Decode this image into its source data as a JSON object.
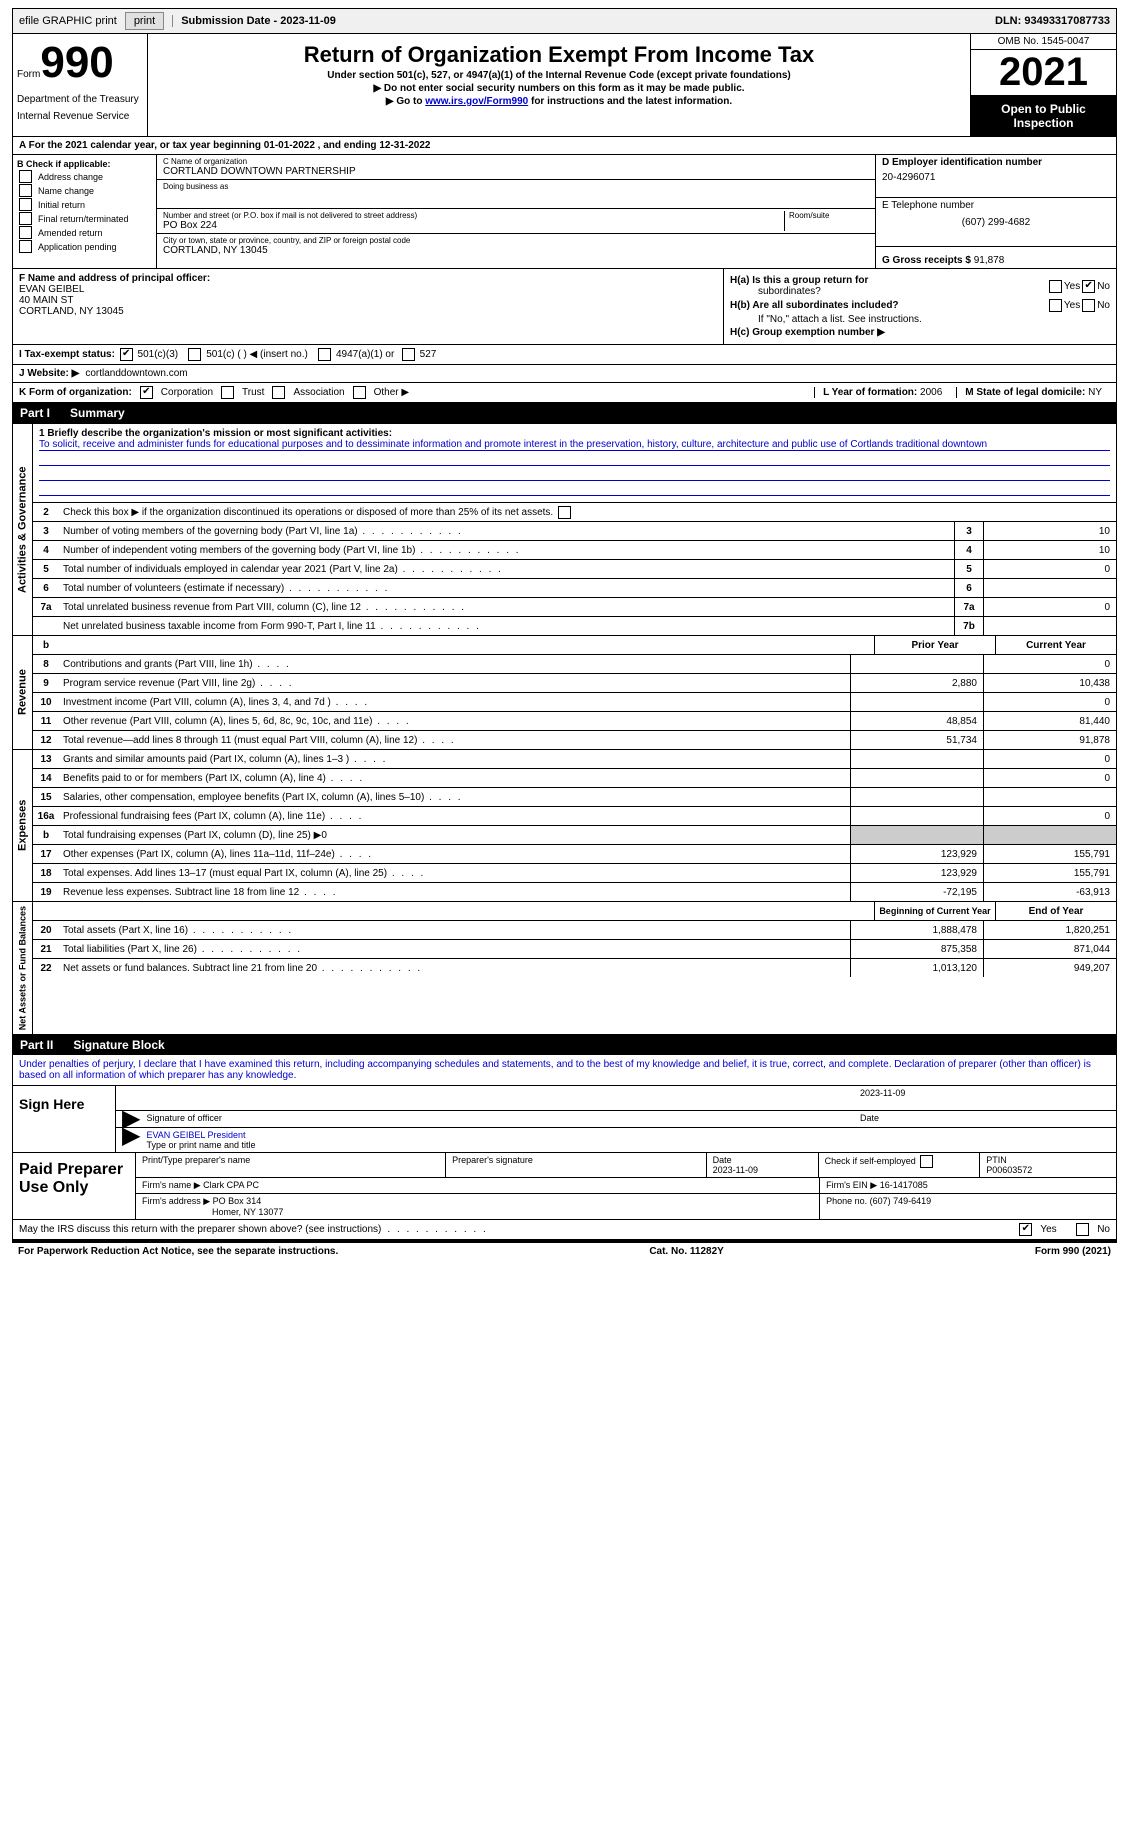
{
  "topbar": {
    "efile": "efile GRAPHIC print",
    "submission": "Submission Date - 2023-11-09",
    "dln": "DLN: 93493317087733"
  },
  "header": {
    "form_small": "Form",
    "form_num": "990",
    "dept": "Department of the Treasury",
    "irs": "Internal Revenue Service",
    "title": "Return of Organization Exempt From Income Tax",
    "sub1": "Under section 501(c), 527, or 4947(a)(1) of the Internal Revenue Code (except private foundations)",
    "sub2": "▶ Do not enter social security numbers on this form as it may be made public.",
    "sub3_pre": "▶ Go to ",
    "sub3_link": "www.irs.gov/Form990",
    "sub3_post": " for instructions and the latest information.",
    "omb": "OMB No. 1545-0047",
    "year": "2021",
    "open": "Open to Public Inspection"
  },
  "row_a": "A For the 2021 calendar year, or tax year beginning 01-01-2022   , and ending 12-31-2022",
  "section_b": {
    "label": "B Check if applicable:",
    "items": [
      "Address change",
      "Name change",
      "Initial return",
      "Final return/terminated",
      "Amended return",
      "Application pending"
    ]
  },
  "section_c": {
    "name_label": "C Name of organization",
    "name": "CORTLAND DOWNTOWN PARTNERSHIP",
    "dba": "Doing business as",
    "addr_label": "Number and street (or P.O. box if mail is not delivered to street address)",
    "room": "Room/suite",
    "addr": "PO Box 224",
    "city_label": "City or town, state or province, country, and ZIP or foreign postal code",
    "city": "CORTLAND, NY  13045"
  },
  "section_d": {
    "ein_label": "D Employer identification number",
    "ein": "20-4296071",
    "tel_label": "E Telephone number",
    "tel": "(607) 299-4682",
    "gross_label": "G Gross receipts $",
    "gross": "91,878"
  },
  "section_f": {
    "label": "F  Name and address of principal officer:",
    "name": "EVAN GEIBEL",
    "addr1": "40 MAIN ST",
    "addr2": "CORTLAND, NY  13045"
  },
  "section_h": {
    "ha": "H(a)  Is this a group return for",
    "ha2": "subordinates?",
    "hb": "H(b)  Are all subordinates included?",
    "hb_note": "If \"No,\" attach a list. See instructions.",
    "hc": "H(c)  Group exemption number ▶",
    "yes": "Yes",
    "no": "No"
  },
  "row_i": {
    "label": "I   Tax-exempt status:",
    "c3": "501(c)(3)",
    "c_other": "501(c) (  ) ◀ (insert no.)",
    "a1": "4947(a)(1) or",
    "s527": "527"
  },
  "row_j": {
    "label": "J   Website: ▶",
    "value": "cortlanddowntown.com"
  },
  "row_k": {
    "label": "K Form of organization:",
    "corp": "Corporation",
    "trust": "Trust",
    "assoc": "Association",
    "other": "Other ▶",
    "l_label": "L Year of formation:",
    "l_val": "2006",
    "m_label": "M State of legal domicile:",
    "m_val": "NY"
  },
  "part1": {
    "label": "Part I",
    "title": "Summary"
  },
  "vlabels": {
    "activities": "Activities & Governance",
    "revenue": "Revenue",
    "expenses": "Expenses",
    "netassets": "Net Assets or Fund Balances"
  },
  "summary": {
    "line1_label": "1   Briefly describe the organization's mission or most significant activities:",
    "mission": "To solicit, receive and administer funds for educational purposes and to dessiminate information and promote interest in the preservation, history, culture, architecture and public use of Cortlands traditional downtown",
    "line2": "Check this box ▶        if the organization discontinued its operations or disposed of more than 25% of its net assets.",
    "lines": [
      {
        "n": "3",
        "d": "Number of voting members of the governing body (Part VI, line 1a)",
        "b": "3",
        "v": "10"
      },
      {
        "n": "4",
        "d": "Number of independent voting members of the governing body (Part VI, line 1b)",
        "b": "4",
        "v": "10"
      },
      {
        "n": "5",
        "d": "Total number of individuals employed in calendar year 2021 (Part V, line 2a)",
        "b": "5",
        "v": "0"
      },
      {
        "n": "6",
        "d": "Total number of volunteers (estimate if necessary)",
        "b": "6",
        "v": ""
      },
      {
        "n": "7a",
        "d": "Total unrelated business revenue from Part VIII, column (C), line 12",
        "b": "7a",
        "v": "0"
      },
      {
        "n": "",
        "d": "Net unrelated business taxable income from Form 990-T, Part I, line 11",
        "b": "7b",
        "v": ""
      }
    ],
    "prior_year": "Prior Year",
    "current_year": "Current Year",
    "rev_lines": [
      {
        "n": "8",
        "d": "Contributions and grants (Part VIII, line 1h)",
        "p": "",
        "c": "0"
      },
      {
        "n": "9",
        "d": "Program service revenue (Part VIII, line 2g)",
        "p": "2,880",
        "c": "10,438"
      },
      {
        "n": "10",
        "d": "Investment income (Part VIII, column (A), lines 3, 4, and 7d )",
        "p": "",
        "c": "0"
      },
      {
        "n": "11",
        "d": "Other revenue (Part VIII, column (A), lines 5, 6d, 8c, 9c, 10c, and 11e)",
        "p": "48,854",
        "c": "81,440"
      },
      {
        "n": "12",
        "d": "Total revenue—add lines 8 through 11 (must equal Part VIII, column (A), line 12)",
        "p": "51,734",
        "c": "91,878"
      }
    ],
    "exp_lines": [
      {
        "n": "13",
        "d": "Grants and similar amounts paid (Part IX, column (A), lines 1–3 )",
        "p": "",
        "c": "0"
      },
      {
        "n": "14",
        "d": "Benefits paid to or for members (Part IX, column (A), line 4)",
        "p": "",
        "c": "0"
      },
      {
        "n": "15",
        "d": "Salaries, other compensation, employee benefits (Part IX, column (A), lines 5–10)",
        "p": "",
        "c": ""
      },
      {
        "n": "16a",
        "d": "Professional fundraising fees (Part IX, column (A), line 11e)",
        "p": "",
        "c": "0"
      },
      {
        "n": "b",
        "d": "Total fundraising expenses (Part IX, column (D), line 25) ▶0",
        "p": "gray",
        "c": "gray"
      },
      {
        "n": "17",
        "d": "Other expenses (Part IX, column (A), lines 11a–11d, 11f–24e)",
        "p": "123,929",
        "c": "155,791"
      },
      {
        "n": "18",
        "d": "Total expenses. Add lines 13–17 (must equal Part IX, column (A), line 25)",
        "p": "123,929",
        "c": "155,791"
      },
      {
        "n": "19",
        "d": "Revenue less expenses. Subtract line 18 from line 12",
        "p": "-72,195",
        "c": "-63,913"
      }
    ],
    "beg_year": "Beginning of Current Year",
    "end_year": "End of Year",
    "net_lines": [
      {
        "n": "20",
        "d": "Total assets (Part X, line 16)",
        "p": "1,888,478",
        "c": "1,820,251"
      },
      {
        "n": "21",
        "d": "Total liabilities (Part X, line 26)",
        "p": "875,358",
        "c": "871,044"
      },
      {
        "n": "22",
        "d": "Net assets or fund balances. Subtract line 21 from line 20",
        "p": "1,013,120",
        "c": "949,207"
      }
    ]
  },
  "part2": {
    "label": "Part II",
    "title": "Signature Block"
  },
  "sig": {
    "penalty": "Under penalties of perjury, I declare that I have examined this return, including accompanying schedules and statements, and to the best of my knowledge and belief, it is true, correct, and complete. Declaration of preparer (other than officer) is based on all information of which preparer has any knowledge.",
    "sign_here": "Sign Here",
    "sig_officer": "Signature of officer",
    "date": "Date",
    "date_val": "2023-11-09",
    "name_title": "EVAN GEIBEL President",
    "type_label": "Type or print name and title"
  },
  "paid": {
    "label": "Paid Preparer Use Only",
    "print_name": "Print/Type preparer's name",
    "prep_sig": "Preparer's signature",
    "date_label": "Date",
    "date_val": "2023-11-09",
    "check_self": "Check        if self-employed",
    "ptin_label": "PTIN",
    "ptin": "P00603572",
    "firm_name_label": "Firm's name    ▶",
    "firm_name": "Clark CPA PC",
    "firm_ein_label": "Firm's EIN ▶",
    "firm_ein": "16-1417085",
    "firm_addr_label": "Firm's address ▶",
    "firm_addr": "PO Box 314",
    "firm_addr2": "Homer, NY  13077",
    "phone_label": "Phone no.",
    "phone": "(607) 749-6419"
  },
  "discuss": {
    "text": "May the IRS discuss this return with the preparer shown above? (see instructions)",
    "yes": "Yes",
    "no": "No"
  },
  "footer": {
    "left": "For Paperwork Reduction Act Notice, see the separate instructions.",
    "center": "Cat. No. 11282Y",
    "right": "Form 990 (2021)"
  }
}
